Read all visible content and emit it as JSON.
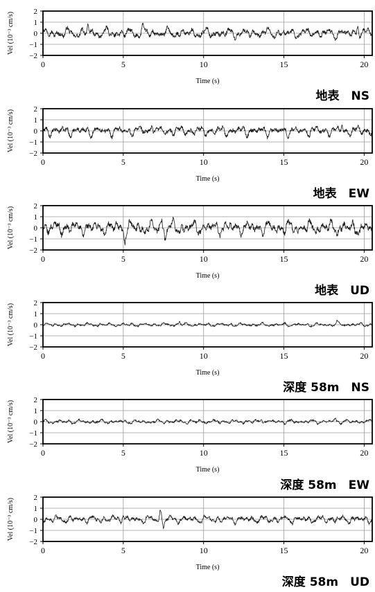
{
  "figure": {
    "panels": [
      {
        "caption": "地表　NS"
      },
      {
        "caption": "地表　EW"
      },
      {
        "caption": "地表　UD"
      },
      {
        "caption": "深度 58m　NS"
      },
      {
        "caption": "深度 58m　EW"
      },
      {
        "caption": "深度 58m　UD"
      }
    ]
  },
  "chart_data": [
    {
      "type": "line",
      "title": "",
      "caption": "地表　NS",
      "xlabel": "Time (s)",
      "ylabel": "Vel (10⁻³ cm/s)",
      "xlim": [
        0,
        20.5
      ],
      "ylim": [
        -2,
        2
      ],
      "xticks": [
        0,
        5,
        10,
        15,
        20
      ],
      "yticks": [
        -2,
        -1,
        0,
        1,
        2
      ],
      "grid": true,
      "series": [
        {
          "amplitude": 0.4,
          "peaks": [
            [
              2.8,
              0.7
            ],
            [
              6.2,
              0.6
            ],
            [
              19.6,
              0.85
            ]
          ],
          "color": "#1a1a1a"
        }
      ]
    },
    {
      "type": "line",
      "title": "",
      "caption": "地表　EW",
      "xlabel": "Time (s)",
      "ylabel": "Vel (10⁻³ cm/s)",
      "xlim": [
        0,
        20.5
      ],
      "ylim": [
        -2,
        2
      ],
      "xticks": [
        0,
        5,
        10,
        15,
        20
      ],
      "yticks": [
        -2,
        -1,
        0,
        1,
        2
      ],
      "grid": true,
      "series": [
        {
          "amplitude": 0.4,
          "peaks": [
            [
              6.8,
              0.8
            ],
            [
              18.6,
              0.6
            ]
          ],
          "color": "#1a1a1a"
        }
      ]
    },
    {
      "type": "line",
      "title": "",
      "caption": "地表　UD",
      "xlabel": "Time (s)",
      "ylabel": "Vel (10⁻³ cm/s)",
      "xlim": [
        0,
        20.5
      ],
      "ylim": [
        -2,
        2
      ],
      "xticks": [
        0,
        5,
        10,
        15,
        20
      ],
      "yticks": [
        -2,
        -1,
        0,
        1,
        2
      ],
      "grid": true,
      "series": [
        {
          "amplitude": 0.55,
          "peaks": [
            [
              5.1,
              -1.1
            ],
            [
              7.4,
              1.0
            ],
            [
              7.6,
              -1.0
            ]
          ],
          "color": "#1a1a1a"
        }
      ]
    },
    {
      "type": "line",
      "title": "",
      "caption": "深度 58m　NS",
      "xlabel": "Time (s)",
      "ylabel": "Vel (10⁻³ cm/s)",
      "xlim": [
        0,
        20.5
      ],
      "ylim": [
        -2,
        2
      ],
      "xticks": [
        0,
        5,
        10,
        15,
        20
      ],
      "yticks": [
        -2,
        -1,
        0,
        1,
        2
      ],
      "grid": true,
      "series": [
        {
          "amplitude": 0.14,
          "peaks": [
            [
              8.5,
              0.3
            ],
            [
              18.3,
              0.3
            ]
          ],
          "color": "#1a1a1a"
        }
      ]
    },
    {
      "type": "line",
      "title": "",
      "caption": "深度 58m　EW",
      "xlabel": "Time (s)",
      "ylabel": "Vel (10⁻³ cm/s)",
      "xlim": [
        0,
        20.5
      ],
      "ylim": [
        -2,
        2
      ],
      "xticks": [
        0,
        5,
        10,
        15,
        20
      ],
      "yticks": [
        -2,
        -1,
        0,
        1,
        2
      ],
      "grid": true,
      "series": [
        {
          "amplitude": 0.16,
          "peaks": [
            [
              13.6,
              0.35
            ],
            [
              18.2,
              0.3
            ]
          ],
          "color": "#1a1a1a"
        }
      ]
    },
    {
      "type": "line",
      "title": "",
      "caption": "深度 58m　UD",
      "xlabel": "Time (s)",
      "ylabel": "Vel (10⁻³ cm/s)",
      "xlim": [
        0,
        20.5
      ],
      "ylim": [
        -2,
        2
      ],
      "xticks": [
        0,
        5,
        10,
        15,
        20
      ],
      "yticks": [
        -2,
        -1,
        0,
        1,
        2
      ],
      "grid": true,
      "series": [
        {
          "amplitude": 0.3,
          "peaks": [
            [
              7.3,
              0.75
            ],
            [
              7.5,
              -0.65
            ],
            [
              5.0,
              0.5
            ]
          ],
          "color": "#1a1a1a"
        }
      ]
    }
  ]
}
